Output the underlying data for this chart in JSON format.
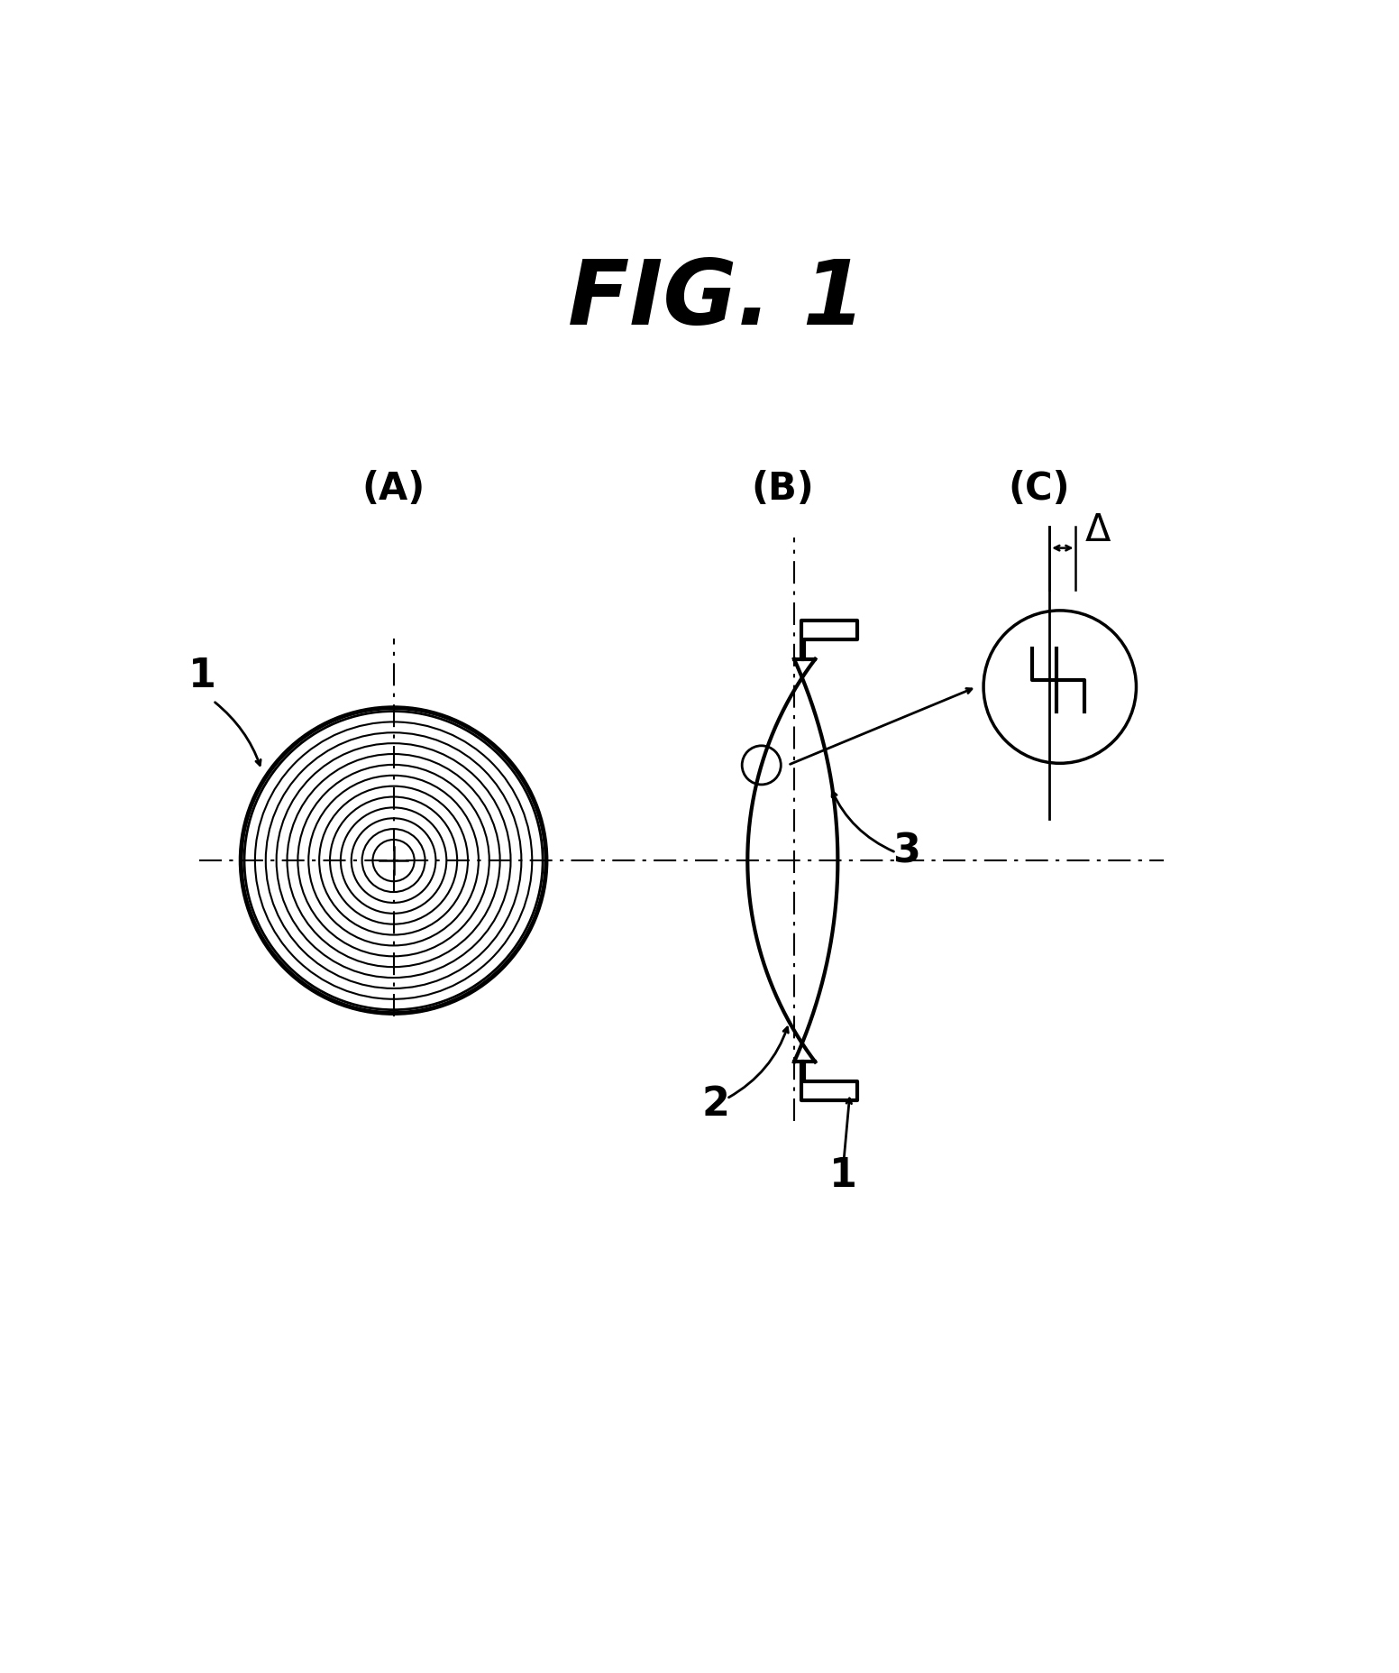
{
  "title": "FIG. 1",
  "bg_color": "#ffffff",
  "label_A": "(A)",
  "label_B": "(B)",
  "label_C": "(C)",
  "label_fontsize": 30,
  "num_rings": 13,
  "annotation_color": "#000000"
}
